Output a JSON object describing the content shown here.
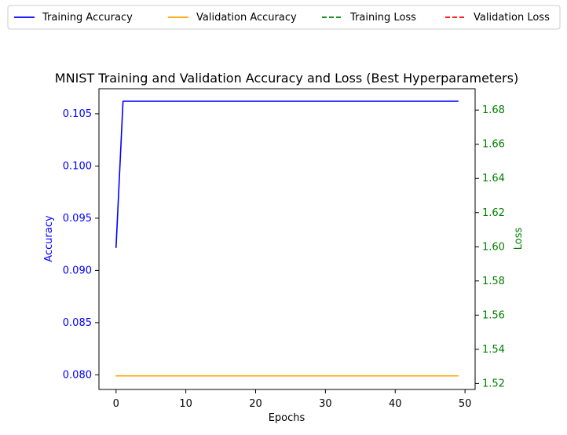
{
  "chart_data": {
    "type": "line",
    "title": "MNIST Training and Validation Accuracy and Loss (Best Hyperparameters)",
    "xlabel": "Epochs",
    "ylabel_left": "Accuracy",
    "ylabel_right": "Loss",
    "xlim": [
      -2.45,
      51.45
    ],
    "ylim_left": [
      0.0786,
      0.1074
    ],
    "ylim_right": [
      1.5165,
      1.6925
    ],
    "x_ticks": [
      0,
      10,
      20,
      30,
      40,
      50
    ],
    "y_ticks_left": [
      0.08,
      0.085,
      0.09,
      0.095,
      0.1,
      0.105
    ],
    "y_ticks_left_labels": [
      "0.080",
      "0.085",
      "0.090",
      "0.095",
      "0.100",
      "0.105"
    ],
    "y_ticks_right": [
      1.52,
      1.54,
      1.56,
      1.58,
      1.6,
      1.62,
      1.64,
      1.66,
      1.68
    ],
    "y_ticks_right_labels": [
      "1.52",
      "1.54",
      "1.56",
      "1.58",
      "1.60",
      "1.62",
      "1.64",
      "1.66",
      "1.68"
    ],
    "grid": false,
    "legend_position": "top, above plot",
    "colors": {
      "training_accuracy": "#0000ff",
      "validation_accuracy": "#ffa500",
      "training_loss": "#008000",
      "validation_loss": "#ff0000",
      "left_axis_text": "#0000ff",
      "right_axis_text": "#008000"
    },
    "series": [
      {
        "name": "Training Accuracy",
        "axis": "left",
        "style": "solid",
        "color": "#0000ff",
        "x": [
          0,
          1,
          2,
          3,
          4,
          5,
          6,
          7,
          8,
          9,
          10,
          11,
          12,
          13,
          14,
          15,
          16,
          17,
          18,
          19,
          20,
          21,
          22,
          23,
          24,
          25,
          26,
          27,
          28,
          29,
          30,
          31,
          32,
          33,
          34,
          35,
          36,
          37,
          38,
          39,
          40,
          41,
          42,
          43,
          44,
          45,
          46,
          47,
          48,
          49
        ],
        "values": [
          0.0922,
          0.1062,
          0.1062,
          0.1062,
          0.1062,
          0.1062,
          0.1062,
          0.1062,
          0.1062,
          0.1062,
          0.1062,
          0.1062,
          0.1062,
          0.1062,
          0.1062,
          0.1062,
          0.1062,
          0.1062,
          0.1062,
          0.1062,
          0.1062,
          0.1062,
          0.1062,
          0.1062,
          0.1062,
          0.1062,
          0.1062,
          0.1062,
          0.1062,
          0.1062,
          0.1062,
          0.1062,
          0.1062,
          0.1062,
          0.1062,
          0.1062,
          0.1062,
          0.1062,
          0.1062,
          0.1062,
          0.1062,
          0.1062,
          0.1062,
          0.1062,
          0.1062,
          0.1062,
          0.1062,
          0.1062,
          0.1062,
          0.1062
        ]
      },
      {
        "name": "Validation Accuracy",
        "axis": "left",
        "style": "solid",
        "color": "#ffa500",
        "x": [
          0,
          1,
          2,
          3,
          4,
          5,
          6,
          7,
          8,
          9,
          10,
          11,
          12,
          13,
          14,
          15,
          16,
          17,
          18,
          19,
          20,
          21,
          22,
          23,
          24,
          25,
          26,
          27,
          28,
          29,
          30,
          31,
          32,
          33,
          34,
          35,
          36,
          37,
          38,
          39,
          40,
          41,
          42,
          43,
          44,
          45,
          46,
          47,
          48,
          49
        ],
        "values": [
          0.0799,
          0.0799,
          0.0799,
          0.0799,
          0.0799,
          0.0799,
          0.0799,
          0.0799,
          0.0799,
          0.0799,
          0.0799,
          0.0799,
          0.0799,
          0.0799,
          0.0799,
          0.0799,
          0.0799,
          0.0799,
          0.0799,
          0.0799,
          0.0799,
          0.0799,
          0.0799,
          0.0799,
          0.0799,
          0.0799,
          0.0799,
          0.0799,
          0.0799,
          0.0799,
          0.0799,
          0.0799,
          0.0799,
          0.0799,
          0.0799,
          0.0799,
          0.0799,
          0.0799,
          0.0799,
          0.0799,
          0.0799,
          0.0799,
          0.0799,
          0.0799,
          0.0799,
          0.0799,
          0.0799,
          0.0799,
          0.0799,
          0.0799
        ]
      },
      {
        "name": "Training Loss",
        "axis": "right",
        "style": "dashed",
        "color": "#008000",
        "x": [],
        "values": []
      },
      {
        "name": "Validation Loss",
        "axis": "right",
        "style": "dashed",
        "color": "#ff0000",
        "x": [],
        "values": []
      }
    ]
  }
}
